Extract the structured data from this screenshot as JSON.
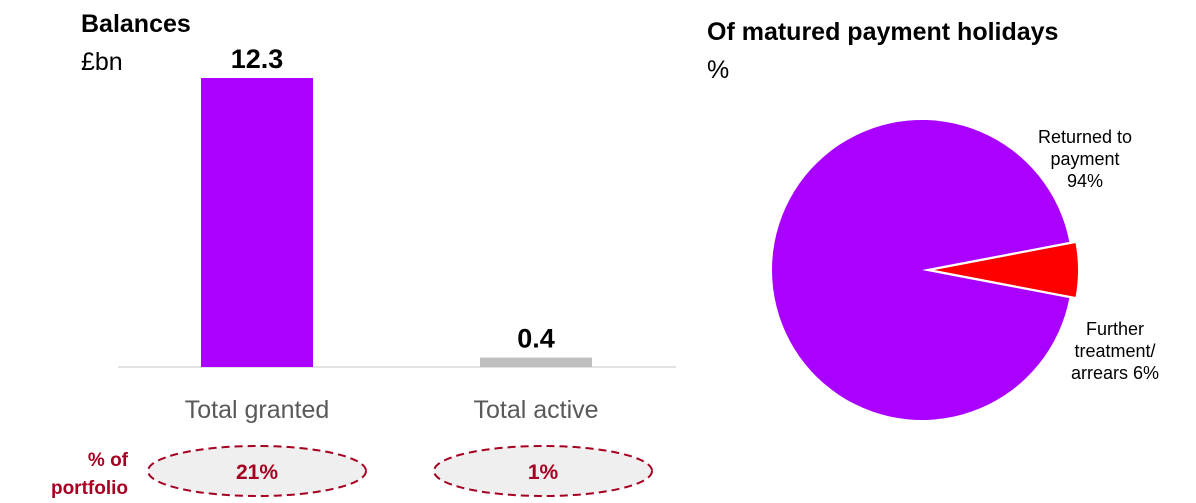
{
  "colors": {
    "primary": "#AA00FF",
    "secondary": "#BFBFBF",
    "accent": "#FF0000",
    "annotation": "#A50021",
    "ellipse_fill": "#EFEFEF"
  },
  "chart_data": [
    {
      "type": "bar",
      "title": "Balances",
      "unit": "£bn",
      "categories": [
        "Total granted",
        "Total active"
      ],
      "values": [
        12.3,
        0.4
      ],
      "value_labels": [
        "12.3",
        "0.4"
      ],
      "ylim": [
        0,
        12.3
      ],
      "grid": false,
      "annotation": {
        "label_line1": "% of",
        "label_line2": "portfolio",
        "values": [
          "21%",
          "1%"
        ]
      }
    },
    {
      "type": "pie",
      "title": "Of matured payment holidays",
      "unit": "%",
      "slices": [
        {
          "label_lines": [
            "Returned to",
            "payment",
            "94%"
          ],
          "value": 94
        },
        {
          "label_lines": [
            "Further",
            "treatment/",
            "arrears 6%"
          ],
          "value": 6
        }
      ]
    }
  ]
}
